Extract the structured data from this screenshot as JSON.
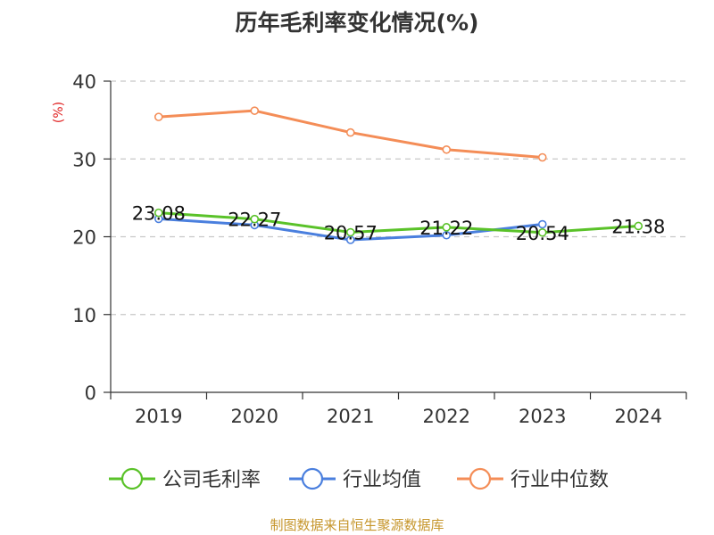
{
  "title": "历年毛利率变化情况(%)",
  "source": "制图数据来自恒生聚源数据库",
  "chart_data": {
    "type": "line",
    "title": "历年毛利率变化情况(%)",
    "ylabel": "(%)",
    "ylabel_color": "#e02020",
    "xlabel": "",
    "categories": [
      "2019",
      "2020",
      "2021",
      "2022",
      "2023",
      "2024"
    ],
    "y_ticks": [
      "0",
      "10",
      "20",
      "30",
      "40"
    ],
    "ylim": [
      0,
      40
    ],
    "grid": true,
    "legend_position": "bottom",
    "series": [
      {
        "name": "公司毛利率",
        "color": "#5ac229",
        "values": [
          23.08,
          22.27,
          20.57,
          21.22,
          20.54,
          21.38
        ],
        "labels": [
          "23.08",
          "22.27",
          "20.57",
          "21.22",
          "20.54",
          "21.38"
        ]
      },
      {
        "name": "行业均值",
        "color": "#4a7fde",
        "values": [
          22.3,
          21.5,
          19.6,
          20.2,
          21.6,
          null
        ]
      },
      {
        "name": "行业中位数",
        "color": "#f48d57",
        "values": [
          35.4,
          36.2,
          33.4,
          31.2,
          30.2,
          null
        ]
      }
    ]
  }
}
